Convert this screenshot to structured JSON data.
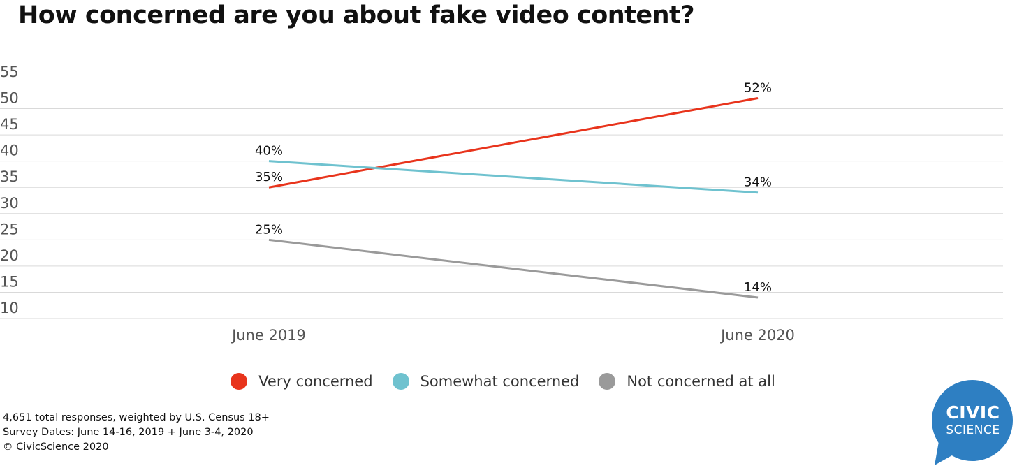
{
  "title": "How concerned are you about fake video content?",
  "colors": {
    "very": "#e8341c",
    "somewhat": "#6fc2cf",
    "not": "#9a9a9a",
    "logo": "#2e7fc2"
  },
  "chart_data": {
    "type": "line",
    "title": "How concerned are you about fake video content?",
    "categories": [
      "June 2019",
      "June 2020"
    ],
    "ylim": [
      10,
      55
    ],
    "yticks": [
      55,
      50,
      45,
      40,
      35,
      30,
      25,
      20,
      15,
      10
    ],
    "grid": true,
    "legend_placement": "bottom",
    "series": [
      {
        "name": "Very concerned",
        "values": [
          35,
          52
        ],
        "labels": [
          "35%",
          "52%"
        ],
        "color": "#e8341c"
      },
      {
        "name": "Somewhat concerned",
        "values": [
          40,
          34
        ],
        "labels": [
          "40%",
          "34%"
        ],
        "color": "#6fc2cf"
      },
      {
        "name": "Not concerned at all",
        "values": [
          25,
          14
        ],
        "labels": [
          "25%",
          "14%"
        ],
        "color": "#9a9a9a"
      }
    ]
  },
  "legend": [
    {
      "label": "Very concerned",
      "color": "#e8341c"
    },
    {
      "label": "Somewhat concerned",
      "color": "#6fc2cf"
    },
    {
      "label": "Not concerned at all",
      "color": "#9a9a9a"
    }
  ],
  "footnotes": [
    "4,651 total responses, weighted by U.S. Census 18+",
    "Survey Dates: June 14-16, 2019 + June 3-4, 2020",
    "© CivicScience 2020"
  ],
  "logo": {
    "line1": "CIVIC",
    "line2": "SCIENCE"
  }
}
